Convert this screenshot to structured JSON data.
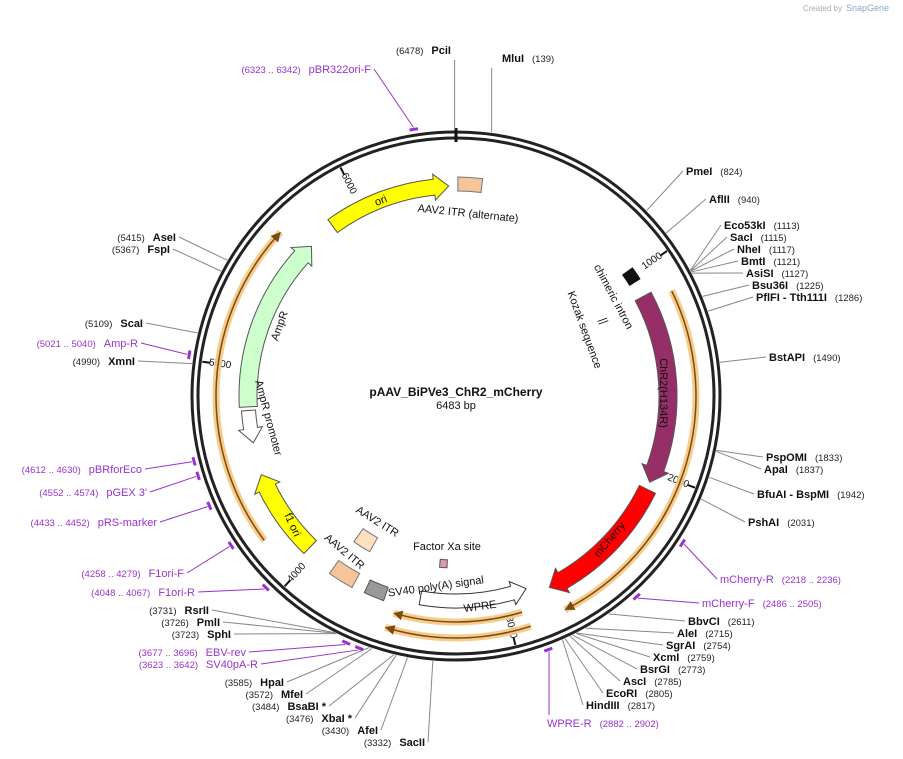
{
  "watermark": {
    "prefix": "Created by",
    "brand": "SnapGene"
  },
  "plasmid": {
    "name": "pAAV_BiPVe3_ChR2_mCherry",
    "size": "6483 bp"
  },
  "ticks": [
    1000,
    2000,
    3000,
    4000,
    5000,
    6000
  ],
  "enzymes": [
    {
      "name": "MluI",
      "site": "(139)"
    },
    {
      "name": "PmeI",
      "site": "(824)"
    },
    {
      "name": "AflII",
      "site": "(940)"
    },
    {
      "name": "Eco53kI",
      "site": "(1113)"
    },
    {
      "name": "SacI",
      "site": "(1115)"
    },
    {
      "name": "NheI",
      "site": "(1117)"
    },
    {
      "name": "BmtI",
      "site": "(1121)"
    },
    {
      "name": "AsiSI",
      "site": "(1127)"
    },
    {
      "name": "Bsu36I",
      "site": "(1225)"
    },
    {
      "name": "PflFI - Tth111I",
      "site": "(1286)"
    },
    {
      "name": "BstAPI",
      "site": "(1490)"
    },
    {
      "name": "PspOMI",
      "site": "(1833)"
    },
    {
      "name": "ApaI",
      "site": "(1837)"
    },
    {
      "name": "BfuAI - BspMI",
      "site": "(1942)"
    },
    {
      "name": "PshAI",
      "site": "(2031)"
    },
    {
      "name": "BbvCI",
      "site": "(2611)"
    },
    {
      "name": "AleI",
      "site": "(2715)"
    },
    {
      "name": "SgrAI",
      "site": "(2754)"
    },
    {
      "name": "XcmI",
      "site": "(2759)"
    },
    {
      "name": "BsrGI",
      "site": "(2773)"
    },
    {
      "name": "AscI",
      "site": "(2785)"
    },
    {
      "name": "EcoRI",
      "site": "(2805)"
    },
    {
      "name": "HindIII",
      "site": "(2817)"
    },
    {
      "name": "SacII",
      "site": "(3332)"
    },
    {
      "name": "AfeI",
      "site": "(3430)"
    },
    {
      "name": "XbaI *",
      "site": "(3476)"
    },
    {
      "name": "BsaBI *",
      "site": "(3484)"
    },
    {
      "name": "MfeI",
      "site": "(3572)"
    },
    {
      "name": "HpaI",
      "site": "(3585)"
    },
    {
      "name": "SphI",
      "site": "(3723)"
    },
    {
      "name": "PmlI",
      "site": "(3726)"
    },
    {
      "name": "RsrII",
      "site": "(3731)"
    },
    {
      "name": "XmnI",
      "site": "(4990)"
    },
    {
      "name": "ScaI",
      "site": "(5109)"
    },
    {
      "name": "FspI",
      "site": "(5367)"
    },
    {
      "name": "AseI",
      "site": "(5415)"
    },
    {
      "name": "PciI",
      "site": "(6478)"
    }
  ],
  "primers": [
    {
      "name": "pBR322ori-F",
      "range": "(6323 .. 6342)"
    },
    {
      "name": "Amp-R",
      "range": "(5021 .. 5040)"
    },
    {
      "name": "pBRforEco",
      "range": "(4612 .. 4630)"
    },
    {
      "name": "pGEX 3'",
      "range": "(4552 .. 4574)"
    },
    {
      "name": "pRS-marker",
      "range": "(4433 .. 4452)"
    },
    {
      "name": "F1ori-F",
      "range": "(4258 .. 4279)"
    },
    {
      "name": "F1ori-R",
      "range": "(4048 .. 4067)"
    },
    {
      "name": "EBV-rev",
      "range": "(3677 .. 3696)"
    },
    {
      "name": "SV40pA-R",
      "range": "(3623 .. 3642)"
    },
    {
      "name": "mCherry-R",
      "range": "(2218 .. 2236)"
    },
    {
      "name": "mCherry-F",
      "range": "(2486 .. 2505)"
    },
    {
      "name": "WPRE-R",
      "range": "(2882 .. 2902)"
    }
  ],
  "features": [
    {
      "label": "ori"
    },
    {
      "label": "AAV2 ITR (alternate)"
    },
    {
      "label": "chimeric intron"
    },
    {
      "label": "Kozak sequence"
    },
    {
      "label": "ChR2(H134R)"
    },
    {
      "label": "mCherry"
    },
    {
      "label": "WPRE"
    },
    {
      "label": "SV40 poly(A) signal"
    },
    {
      "label": "Factor Xa site"
    },
    {
      "label": "AAV2 ITR"
    },
    {
      "label": "AAV2 ITR"
    },
    {
      "label": "f1 ori"
    },
    {
      "label": "AmpR"
    },
    {
      "label": "AmpR promoter"
    }
  ]
}
